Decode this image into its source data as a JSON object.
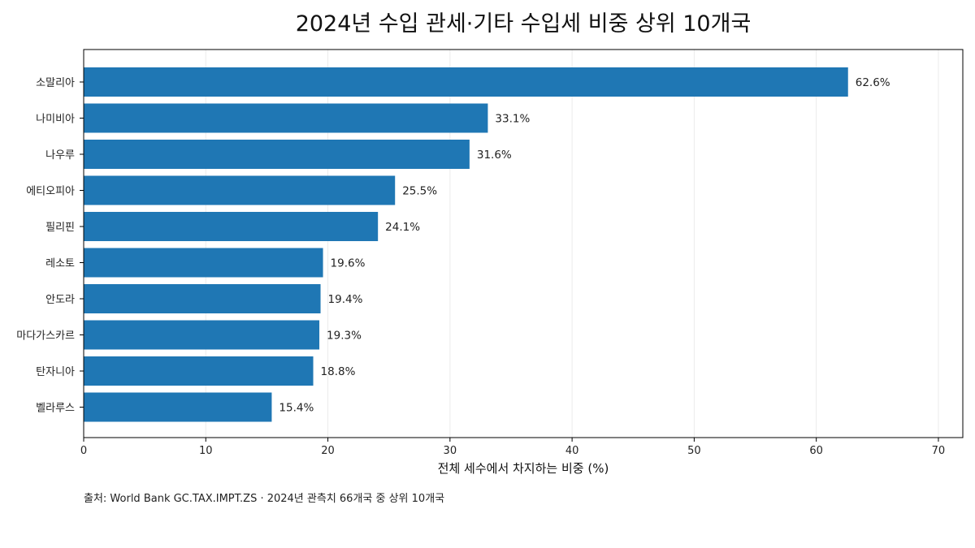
{
  "colors": {
    "bar": "#1f77b4",
    "grid": "#ebebeb",
    "axis": "#000000"
  },
  "chart_data": {
    "type": "bar",
    "orientation": "horizontal",
    "title": "2024년 수입 관세·기타 수입세 비중 상위 10개국",
    "xlabel": "전체 세수에서 차지하는 비중 (%)",
    "ylabel": "",
    "xlim": [
      0,
      72
    ],
    "xticks": [
      0,
      10,
      20,
      30,
      40,
      50,
      60,
      70
    ],
    "grid": "x-only",
    "categories": [
      "소말리아",
      "나미비아",
      "나우루",
      "에티오피아",
      "필리핀",
      "레소토",
      "안도라",
      "마다가스카르",
      "탄자니아",
      "벨라루스"
    ],
    "values": [
      62.6,
      33.1,
      31.6,
      25.5,
      24.1,
      19.6,
      19.4,
      19.3,
      18.8,
      15.4
    ],
    "value_labels": [
      "62.6%",
      "33.1%",
      "31.6%",
      "25.5%",
      "24.1%",
      "19.6%",
      "19.4%",
      "19.3%",
      "18.8%",
      "15.4%"
    ],
    "source": "출처: World Bank GC.TAX.IMPT.ZS · 2024년 관측치 66개국 중 상위 10개국"
  }
}
